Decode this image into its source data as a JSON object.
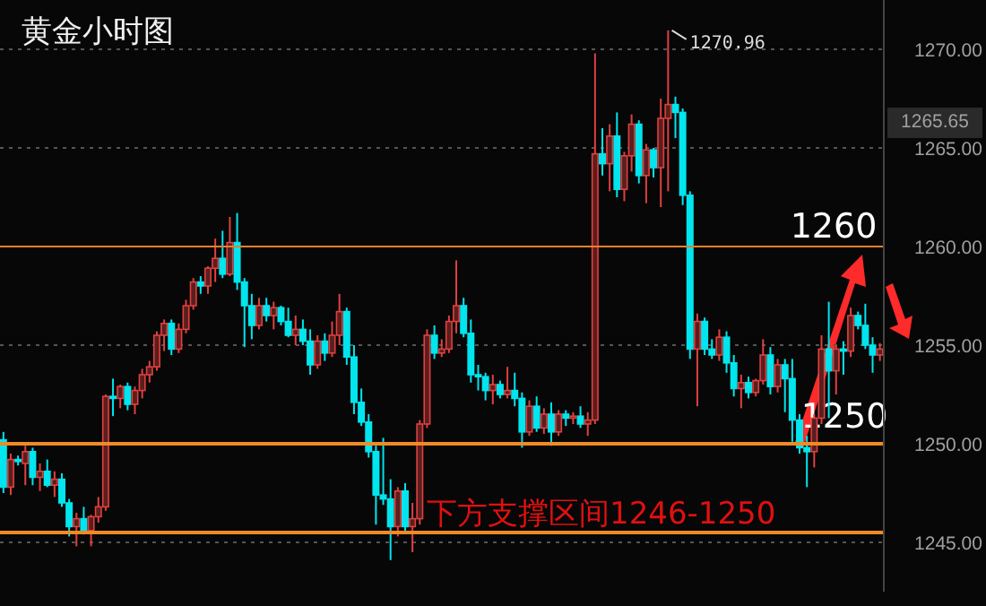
{
  "chart_data": {
    "type": "candlestick",
    "title": "黄金小时图",
    "categories": [
      null,
      null,
      null,
      null,
      null,
      null,
      null,
      null,
      null,
      null,
      null,
      null,
      null,
      null,
      null,
      null,
      null,
      null,
      null,
      null,
      null,
      null,
      null,
      null,
      null,
      null,
      null,
      null,
      null,
      null,
      null,
      null,
      null,
      null,
      null,
      null,
      null,
      null,
      null,
      null,
      null,
      null,
      null,
      null,
      null,
      null,
      null,
      null,
      null,
      null,
      null,
      null,
      null,
      null,
      null,
      null,
      null,
      null,
      null,
      null,
      null,
      null,
      null,
      null,
      null,
      null,
      null,
      null,
      null,
      null,
      null,
      null,
      null,
      null,
      null,
      null,
      null,
      null,
      null,
      null,
      null,
      null,
      null,
      null,
      null,
      null,
      null,
      null,
      null,
      null,
      null,
      null,
      null,
      null,
      null,
      null,
      null,
      null,
      null,
      null,
      null,
      null,
      null,
      null,
      null,
      null,
      null,
      null,
      null,
      null,
      null,
      null,
      null,
      null,
      null,
      null,
      null,
      null,
      null,
      null,
      null
    ],
    "ohlc": [
      [
        1250.2,
        1250.6,
        1247.5,
        1247.8
      ],
      [
        1247.8,
        1249.5,
        1247.4,
        1249.2
      ],
      [
        1249.2,
        1249.4,
        1248.9,
        1249.1
      ],
      [
        1249.0,
        1249.9,
        1247.9,
        1249.6
      ],
      [
        1249.6,
        1249.8,
        1247.9,
        1248.3
      ],
      [
        1248.3,
        1249.0,
        1247.6,
        1248.6
      ],
      [
        1248.6,
        1249.2,
        1247.8,
        1247.9
      ],
      [
        1247.9,
        1248.6,
        1247.3,
        1248.2
      ],
      [
        1248.2,
        1248.5,
        1246.8,
        1247.0
      ],
      [
        1247.0,
        1247.2,
        1245.3,
        1245.8
      ],
      [
        1245.8,
        1246.5,
        1244.8,
        1246.2
      ],
      [
        1246.2,
        1246.8,
        1245.4,
        1245.6
      ],
      [
        1245.6,
        1246.4,
        1244.8,
        1246.3
      ],
      [
        1246.3,
        1247.3,
        1246.0,
        1246.8
      ],
      [
        1246.8,
        1252.5,
        1246.6,
        1252.4
      ],
      [
        1252.4,
        1253.3,
        1251.4,
        1252.3
      ],
      [
        1252.3,
        1253.0,
        1251.8,
        1252.9
      ],
      [
        1252.9,
        1253.1,
        1251.7,
        1252.0
      ],
      [
        1252.0,
        1252.9,
        1251.5,
        1252.7
      ],
      [
        1252.7,
        1253.8,
        1252.3,
        1253.5
      ],
      [
        1253.5,
        1254.2,
        1253.1,
        1253.9
      ],
      [
        1253.9,
        1255.7,
        1253.7,
        1255.5
      ],
      [
        1255.5,
        1256.3,
        1254.7,
        1256.1
      ],
      [
        1256.1,
        1256.3,
        1254.5,
        1254.8
      ],
      [
        1254.8,
        1256.1,
        1254.6,
        1255.8
      ],
      [
        1255.8,
        1257.3,
        1255.6,
        1257.0
      ],
      [
        1257.0,
        1258.4,
        1256.8,
        1258.2
      ],
      [
        1258.2,
        1258.5,
        1257.6,
        1258.0
      ],
      [
        1258.0,
        1259.0,
        1257.6,
        1258.9
      ],
      [
        1258.9,
        1260.4,
        1258.2,
        1259.4
      ],
      [
        1259.4,
        1260.8,
        1258.4,
        1258.6
      ],
      [
        1258.6,
        1261.5,
        1258.5,
        1260.2
      ],
      [
        1260.2,
        1261.7,
        1257.8,
        1258.2
      ],
      [
        1258.2,
        1258.4,
        1254.9,
        1257.0
      ],
      [
        1257.0,
        1257.6,
        1255.3,
        1256.0
      ],
      [
        1256.0,
        1257.4,
        1255.8,
        1257.0
      ],
      [
        1257.0,
        1257.4,
        1256.2,
        1256.5
      ],
      [
        1256.5,
        1257.2,
        1255.8,
        1256.9
      ],
      [
        1256.9,
        1257.0,
        1256.0,
        1256.2
      ],
      [
        1256.2,
        1256.9,
        1255.4,
        1255.5
      ],
      [
        1255.5,
        1256.5,
        1255.0,
        1255.8
      ],
      [
        1255.8,
        1256.3,
        1255.0,
        1255.2
      ],
      [
        1255.2,
        1255.8,
        1253.5,
        1254.0
      ],
      [
        1254.0,
        1255.5,
        1253.8,
        1255.2
      ],
      [
        1255.2,
        1255.6,
        1254.2,
        1254.6
      ],
      [
        1254.6,
        1256.2,
        1254.4,
        1255.5
      ],
      [
        1255.5,
        1257.6,
        1255.0,
        1256.7
      ],
      [
        1256.7,
        1256.9,
        1254.0,
        1254.4
      ],
      [
        1254.4,
        1255.0,
        1251.5,
        1252.1
      ],
      [
        1252.1,
        1252.8,
        1250.9,
        1251.1
      ],
      [
        1251.1,
        1251.5,
        1249.3,
        1249.6
      ],
      [
        1249.6,
        1249.9,
        1245.9,
        1247.4
      ],
      [
        1247.4,
        1250.3,
        1246.9,
        1247.2
      ],
      [
        1247.2,
        1248.2,
        1244.1,
        1245.8
      ],
      [
        1245.8,
        1247.8,
        1245.3,
        1247.6
      ],
      [
        1247.6,
        1248.0,
        1245.5,
        1245.8
      ],
      [
        1245.8,
        1247.0,
        1244.5,
        1246.2
      ],
      [
        1246.2,
        1251.2,
        1245.9,
        1251.0
      ],
      [
        1251.0,
        1255.8,
        1250.8,
        1255.5
      ],
      [
        1255.5,
        1256.0,
        1254.3,
        1254.6
      ],
      [
        1254.6,
        1255.3,
        1254.4,
        1254.8
      ],
      [
        1254.8,
        1256.5,
        1254.6,
        1256.2
      ],
      [
        1256.2,
        1259.3,
        1255.6,
        1257.0
      ],
      [
        1257.0,
        1257.4,
        1255.4,
        1255.6
      ],
      [
        1255.6,
        1256.3,
        1253.1,
        1253.5
      ],
      [
        1253.5,
        1254.0,
        1252.7,
        1253.4
      ],
      [
        1253.4,
        1253.6,
        1252.2,
        1252.7
      ],
      [
        1252.7,
        1253.5,
        1252.0,
        1253.0
      ],
      [
        1253.0,
        1253.2,
        1252.3,
        1252.5
      ],
      [
        1252.5,
        1253.9,
        1252.3,
        1252.7
      ],
      [
        1252.7,
        1253.6,
        1251.9,
        1252.3
      ],
      [
        1252.3,
        1252.6,
        1249.8,
        1250.6
      ],
      [
        1250.6,
        1252.2,
        1250.4,
        1251.9
      ],
      [
        1251.9,
        1252.4,
        1250.6,
        1250.8
      ],
      [
        1250.8,
        1251.8,
        1250.5,
        1251.5
      ],
      [
        1251.5,
        1252.1,
        1249.9,
        1250.6
      ],
      [
        1250.6,
        1251.7,
        1250.4,
        1251.5
      ],
      [
        1251.5,
        1251.7,
        1250.9,
        1251.3
      ],
      [
        1251.3,
        1251.6,
        1251.0,
        1251.4
      ],
      [
        1251.4,
        1251.9,
        1250.8,
        1251.0
      ],
      [
        1251.0,
        1251.6,
        1250.4,
        1251.2
      ],
      [
        1251.2,
        1269.8,
        1251.0,
        1264.7
      ],
      [
        1264.7,
        1266.0,
        1263.6,
        1264.2
      ],
      [
        1264.2,
        1266.2,
        1262.8,
        1265.6
      ],
      [
        1265.6,
        1266.8,
        1262.5,
        1262.9
      ],
      [
        1262.9,
        1264.8,
        1262.3,
        1264.6
      ],
      [
        1264.6,
        1266.7,
        1263.8,
        1266.2
      ],
      [
        1266.2,
        1266.4,
        1263.2,
        1263.6
      ],
      [
        1263.6,
        1265.2,
        1262.2,
        1264.9
      ],
      [
        1264.9,
        1265.0,
        1263.5,
        1264.0
      ],
      [
        1264.0,
        1267.5,
        1262.0,
        1266.5
      ],
      [
        1266.5,
        1270.96,
        1262.8,
        1267.2
      ],
      [
        1267.2,
        1267.6,
        1265.5,
        1266.8
      ],
      [
        1266.8,
        1267.0,
        1262.1,
        1262.6
      ],
      [
        1262.6,
        1262.8,
        1254.3,
        1254.8
      ],
      [
        1254.8,
        1256.6,
        1251.9,
        1256.2
      ],
      [
        1256.2,
        1256.4,
        1254.5,
        1254.8
      ],
      [
        1254.8,
        1255.3,
        1254.3,
        1254.5
      ],
      [
        1254.5,
        1255.8,
        1254.2,
        1255.4
      ],
      [
        1255.4,
        1255.7,
        1253.6,
        1254.1
      ],
      [
        1254.1,
        1254.5,
        1252.4,
        1252.8
      ],
      [
        1252.8,
        1253.5,
        1251.8,
        1253.1
      ],
      [
        1253.1,
        1253.4,
        1252.3,
        1252.6
      ],
      [
        1252.6,
        1253.3,
        1252.4,
        1253.2
      ],
      [
        1253.2,
        1255.3,
        1253.0,
        1254.5
      ],
      [
        1254.5,
        1254.9,
        1252.5,
        1252.9
      ],
      [
        1252.9,
        1254.3,
        1252.6,
        1254.0
      ],
      [
        1254.0,
        1254.3,
        1251.6,
        1253.3
      ],
      [
        1253.3,
        1254.3,
        1250.1,
        1251.2
      ],
      [
        1251.2,
        1251.5,
        1249.5,
        1249.8
      ],
      [
        1249.8,
        1250.4,
        1247.8,
        1249.6
      ],
      [
        1249.6,
        1251.5,
        1248.8,
        1251.3
      ],
      [
        1251.3,
        1255.5,
        1251.0,
        1254.8
      ],
      [
        1254.8,
        1257.2,
        1251.3,
        1253.7
      ],
      [
        1253.7,
        1255.0,
        1252.5,
        1254.8
      ],
      [
        1254.8,
        1255.2,
        1253.5,
        1254.7
      ],
      [
        1254.7,
        1256.9,
        1254.4,
        1256.5
      ],
      [
        1256.5,
        1256.7,
        1255.8,
        1256.0
      ],
      [
        1256.0,
        1257.1,
        1254.8,
        1255.0
      ],
      [
        1255.0,
        1255.4,
        1253.6,
        1254.5
      ],
      [
        1254.5,
        1255.1,
        1254.2,
        1254.8
      ]
    ],
    "colors": [
      "#00e5ee",
      "#e0403f",
      "#00e5ee",
      "#e0403f",
      "#00e5ee",
      "#e0403f",
      "#00e5ee",
      "#e0403f",
      "#00e5ee",
      "#00e5ee",
      "#e0403f",
      "#00e5ee",
      "#e0403f",
      "#e0403f",
      "#e0403f",
      "#00e5ee",
      "#e0403f",
      "#00e5ee",
      "#e0403f",
      "#e0403f",
      "#e0403f",
      "#e0403f",
      "#e0403f",
      "#00e5ee",
      "#e0403f",
      "#e0403f",
      "#e0403f",
      "#00e5ee",
      "#e0403f",
      "#e0403f",
      "#00e5ee",
      "#e0403f",
      "#00e5ee",
      "#00e5ee",
      "#00e5ee",
      "#e0403f",
      "#00e5ee",
      "#e0403f",
      "#00e5ee",
      "#00e5ee",
      "#e0403f",
      "#00e5ee",
      "#00e5ee",
      "#e0403f",
      "#00e5ee",
      "#e0403f",
      "#e0403f",
      "#00e5ee",
      "#00e5ee",
      "#00e5ee",
      "#00e5ee",
      "#00e5ee",
      "#00e5ee",
      "#00e5ee",
      "#e0403f",
      "#00e5ee",
      "#e0403f",
      "#e0403f",
      "#e0403f",
      "#00e5ee",
      "#e0403f",
      "#e0403f",
      "#e0403f",
      "#00e5ee",
      "#00e5ee",
      "#00e5ee",
      "#00e5ee",
      "#e0403f",
      "#00e5ee",
      "#e0403f",
      "#00e5ee",
      "#00e5ee",
      "#e0403f",
      "#00e5ee",
      "#e0403f",
      "#00e5ee",
      "#e0403f",
      "#00e5ee",
      "#e0403f",
      "#00e5ee",
      "#e0403f",
      "#e0403f",
      "#00e5ee",
      "#e0403f",
      "#00e5ee",
      "#e0403f",
      "#e0403f",
      "#00e5ee",
      "#e0403f",
      "#00e5ee",
      "#e0403f",
      "#e0403f",
      "#00e5ee",
      "#00e5ee",
      "#00e5ee",
      "#e0403f",
      "#00e5ee",
      "#00e5ee",
      "#e0403f",
      "#00e5ee",
      "#00e5ee",
      "#e0403f",
      "#00e5ee",
      "#e0403f",
      "#e0403f",
      "#00e5ee",
      "#e0403f",
      "#00e5ee",
      "#00e5ee",
      "#00e5ee",
      "#00e5ee",
      "#e0403f",
      "#e0403f",
      "#00e5ee",
      "#e0403f",
      "#00e5ee",
      "#e0403f",
      "#00e5ee",
      "#00e5ee",
      "#00e5ee",
      "#e0403f"
    ],
    "ylim": [
      1242.5,
      1272.5
    ],
    "yticks": [
      {
        "value": 1245,
        "label": "1245.00"
      },
      {
        "value": 1250,
        "label": "1250.00"
      },
      {
        "value": 1255,
        "label": "1255.00"
      },
      {
        "value": 1260,
        "label": "1260.00"
      },
      {
        "value": 1265,
        "label": "1265.00"
      },
      {
        "value": 1270,
        "label": "1270.00"
      }
    ],
    "tick_labels": "y",
    "grid": "y",
    "ref_lines": [
      {
        "axis": "y",
        "value": 1260,
        "label": "1260",
        "color": "#e8812a"
      },
      {
        "axis": "y",
        "value": 1250,
        "label": "1250",
        "color": "#f08a24"
      },
      {
        "axis": "y",
        "value": 1245.5,
        "label": "下方支撑区间1246-1250",
        "color": "#f08a24"
      }
    ],
    "annotations": [
      "1270.96",
      "1265.65"
    ]
  }
}
